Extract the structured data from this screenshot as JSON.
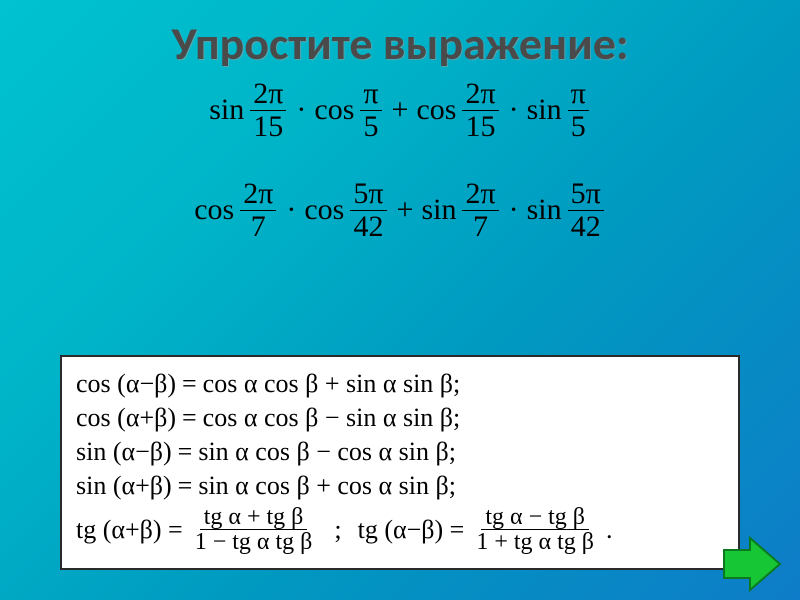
{
  "title": "Упростите выражение:",
  "title_fontsize": 46,
  "background_gradient": [
    "#00c2d0",
    "#00b4c8",
    "#0099c0",
    "#0e7cc8"
  ],
  "expressions": [
    {
      "terms": [
        {
          "fn": "sin",
          "num": "2π",
          "den": "15"
        },
        {
          "op": "·"
        },
        {
          "fn": "cos",
          "num": "π",
          "den": "5"
        },
        {
          "op": "+"
        },
        {
          "fn": "cos",
          "num": "2π",
          "den": "15"
        },
        {
          "op": "·"
        },
        {
          "fn": "sin",
          "num": "π",
          "den": "5"
        }
      ]
    },
    {
      "terms": [
        {
          "fn": "cos",
          "num": "2π",
          "den": "7"
        },
        {
          "op": "·"
        },
        {
          "fn": "cos",
          "num": "5π",
          "den": "42"
        },
        {
          "op": "+"
        },
        {
          "fn": "sin",
          "num": "2π",
          "den": "7"
        },
        {
          "op": "·"
        },
        {
          "fn": "sin",
          "num": "5π",
          "den": "42"
        }
      ]
    }
  ],
  "formula_box": {
    "border_color": "#2a2a2a",
    "bg": "#ffffff",
    "lines": [
      {
        "lhs": "cos (α−β)",
        "rhs": "cos α cos β + sin α sin β;"
      },
      {
        "lhs": "cos (α+β)",
        "rhs": "cos α cos β − sin α sin β;"
      },
      {
        "lhs": "sin (α−β)",
        "rhs": "sin α cos β − cos α sin β;"
      },
      {
        "lhs": "sin (α+β)",
        "rhs": "sin α cos β + cos α sin β;"
      }
    ],
    "tg_row": {
      "left": {
        "lhs": "tg (α+β) =",
        "num": "tg α + tg β",
        "den": "1 − tg α tg β"
      },
      "right": {
        "lhs": "tg (α−β) =",
        "num": "tg α − tg β",
        "den": "1 + tg α tg β"
      },
      "sep": ";",
      "tail": "."
    }
  },
  "arrow": {
    "fill": "#17c634",
    "stroke": "#0b7a1f"
  }
}
